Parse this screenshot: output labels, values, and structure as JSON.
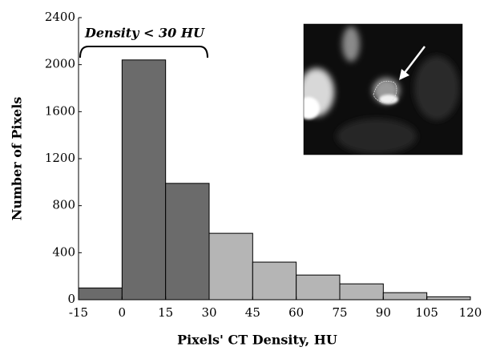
{
  "chart_data": {
    "type": "histogram",
    "xlabel": "Pixels' CT Density, HU",
    "ylabel": "Number of Pixels",
    "annotation": "Density < 30 HU",
    "bins": [
      -15,
      0,
      15,
      30,
      45,
      60,
      75,
      90,
      105,
      120
    ],
    "values": [
      100,
      2040,
      990,
      565,
      320,
      210,
      135,
      60,
      25
    ],
    "colors": [
      "#6b6b6b",
      "#6b6b6b",
      "#6b6b6b",
      "#b5b5b5",
      "#b5b5b5",
      "#b5b5b5",
      "#b5b5b5",
      "#b5b5b5",
      "#b5b5b5"
    ],
    "xlim": [
      -15,
      120
    ],
    "ylim": [
      0,
      2400
    ],
    "xticks": [
      -15,
      0,
      15,
      30,
      45,
      60,
      75,
      90,
      105,
      120
    ],
    "yticks": [
      0,
      400,
      800,
      1200,
      1600,
      2000,
      2400
    ],
    "grid": false
  }
}
